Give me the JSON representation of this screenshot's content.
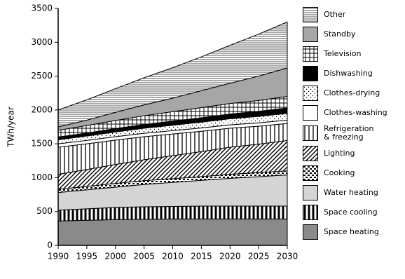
{
  "chart_data": {
    "type": "stacked_area",
    "y_label": "TWh/year",
    "x": [
      1990,
      1995,
      2000,
      2005,
      2010,
      2015,
      2020,
      2025,
      2030
    ],
    "xlim": [
      1990,
      2030
    ],
    "xticks": [
      1990,
      1995,
      2000,
      2005,
      2010,
      2015,
      2020,
      2025,
      2030
    ],
    "ylim": [
      0,
      3500
    ],
    "yticks": [
      0,
      500,
      1000,
      1500,
      2000,
      2500,
      3000,
      3500
    ],
    "series": [
      {
        "name": "Space heating",
        "color": "#8a8a8a",
        "pattern": "solid",
        "values": [
          360,
          370,
          380,
          385,
          390,
          390,
          390,
          390,
          390
        ]
      },
      {
        "name": "Space cooling",
        "color": "#000000",
        "pattern": "vlines-bold",
        "values": [
          160,
          170,
          180,
          185,
          185,
          190,
          190,
          190,
          190
        ]
      },
      {
        "name": "Water heating",
        "color": "#d4d4d4",
        "pattern": "solid",
        "values": [
          260,
          280,
          300,
          330,
          355,
          380,
          410,
          435,
          460
        ]
      },
      {
        "name": "Cooking",
        "color": "#000000",
        "pattern": "blotch",
        "values": [
          50,
          50,
          55,
          55,
          55,
          55,
          60,
          60,
          60
        ]
      },
      {
        "name": "Lighting",
        "color": "#000000",
        "pattern": "diag",
        "values": [
          220,
          250,
          280,
          310,
          340,
          370,
          400,
          420,
          450
        ]
      },
      {
        "name": "Refrigeration\n& freezing",
        "color": "#000000",
        "pattern": "vlines",
        "values": [
          400,
          380,
          360,
          340,
          320,
          300,
          280,
          265,
          250
        ]
      },
      {
        "name": "Clothes-washing",
        "color": "#ffffff",
        "pattern": "solid",
        "values": [
          50,
          50,
          50,
          50,
          50,
          50,
          50,
          50,
          50
        ]
      },
      {
        "name": "Clothes-drying",
        "color": "#000000",
        "pattern": "dots",
        "values": [
          60,
          65,
          70,
          75,
          80,
          85,
          90,
          95,
          100
        ]
      },
      {
        "name": "Dishwashing",
        "color": "#000000",
        "pattern": "solid",
        "values": [
          40,
          45,
          50,
          55,
          60,
          65,
          70,
          75,
          80
        ]
      },
      {
        "name": "Television",
        "color": "#000000",
        "pattern": "grid",
        "values": [
          100,
          110,
          120,
          130,
          140,
          150,
          155,
          160,
          170
        ]
      },
      {
        "name": "Standby",
        "color": "#a6a6a6",
        "pattern": "solid",
        "values": [
          50,
          80,
          120,
          160,
          200,
          250,
          300,
          360,
          420
        ]
      },
      {
        "name": "Other",
        "color": "#555555",
        "pattern": "hlines",
        "values": [
          250,
          300,
          350,
          400,
          450,
          500,
          560,
          620,
          680
        ]
      }
    ]
  }
}
